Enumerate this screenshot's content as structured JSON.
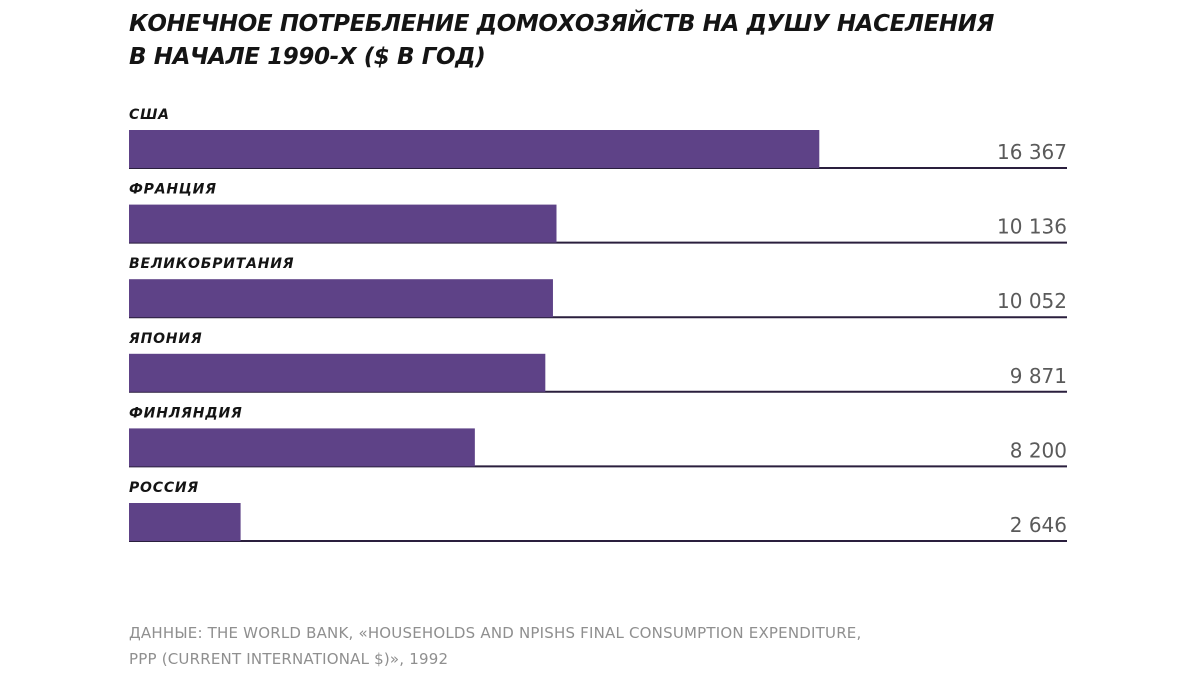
{
  "title": {
    "line1": "КОНЕЧНОЕ ПОТРЕБЛЕНИЕ ДОМОХОЗЯЙСТВ НА ДУШУ НАСЕЛЕНИЯ",
    "line2": "В НАЧАЛЕ 1990-Х ($ В ГОД)"
  },
  "source": {
    "line1": "ДАННЫЕ: THE WORLD BANK, «HOUSEHOLDS AND NPISHS FINAL CONSUMPTION EXPENDITURE,",
    "line2": "PPP (CURRENT INTERNATIONAL $)», 1992"
  },
  "colors": {
    "bar": "#5e4287",
    "baseline": "#2a1f3d",
    "category_text": "#141414",
    "value_text": "#5a5a5a"
  },
  "chart_data": {
    "type": "bar",
    "orientation": "horizontal",
    "categories": [
      "США",
      "ФРАНЦИЯ",
      "ВЕЛИКОБРИТАНИЯ",
      "ЯПОНИЯ",
      "ФИНЛЯНДИЯ",
      "РОССИЯ"
    ],
    "values": [
      16367,
      10136,
      10052,
      9871,
      8200,
      2646
    ],
    "value_labels": [
      "16 367",
      "10 136",
      "10 052",
      "9 871",
      "8 200",
      "2 646"
    ],
    "xlim": [
      0,
      22240
    ],
    "grid": false,
    "legend": "none"
  }
}
